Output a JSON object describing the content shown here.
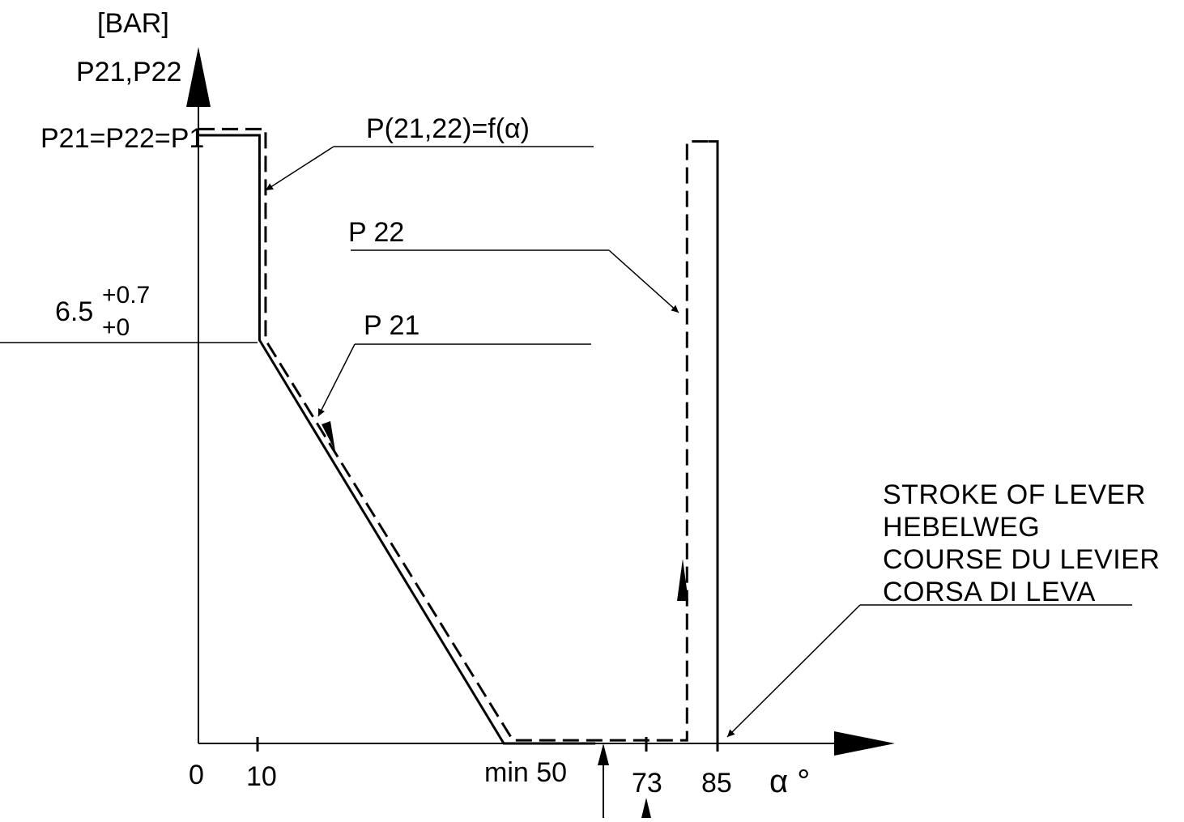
{
  "chart_data": {
    "type": "line",
    "title": "",
    "xlabel": "α °",
    "ylabel_unit": "[BAR]",
    "ylabel": "P21,P22",
    "function_label": "P(21,22)=f(α)",
    "x_ticks": [
      {
        "value": 0,
        "label": "0"
      },
      {
        "value": 10,
        "label": "10"
      },
      {
        "value": 50,
        "label": "min 50"
      },
      {
        "value": 73,
        "label": "73"
      },
      {
        "value": 85,
        "label": "85"
      }
    ],
    "y_ticks": [
      {
        "value": 6.5,
        "label": "6.5",
        "tol_upper": "+0.7",
        "tol_lower": "+0"
      },
      {
        "value": 9.8,
        "label": "P21=P22=P1"
      }
    ],
    "series": [
      {
        "name": "P 21",
        "style": "solid",
        "points": [
          [
            0,
            9.8
          ],
          [
            10,
            9.8
          ],
          [
            10,
            6.5
          ],
          [
            50,
            0
          ],
          [
            65,
            0
          ]
        ]
      },
      {
        "name": "P 22",
        "style": "dashed",
        "points": [
          [
            0,
            9.9
          ],
          [
            11,
            9.9
          ],
          [
            11,
            6.5
          ],
          [
            51.5,
            0.05
          ],
          [
            80,
            0.05
          ],
          [
            80,
            9.7
          ],
          [
            83.5,
            9.7
          ]
        ]
      }
    ],
    "stroke_line": {
      "x": 85,
      "y_top": 9.7
    },
    "stroke_note": [
      "STROKE OF LEVER",
      "HEBELWEG",
      "COURSE DU LEVIER",
      "CORSA DI LEVA"
    ],
    "xlim": [
      0,
      85
    ],
    "ylim": [
      0,
      9.9
    ],
    "grid": false
  }
}
